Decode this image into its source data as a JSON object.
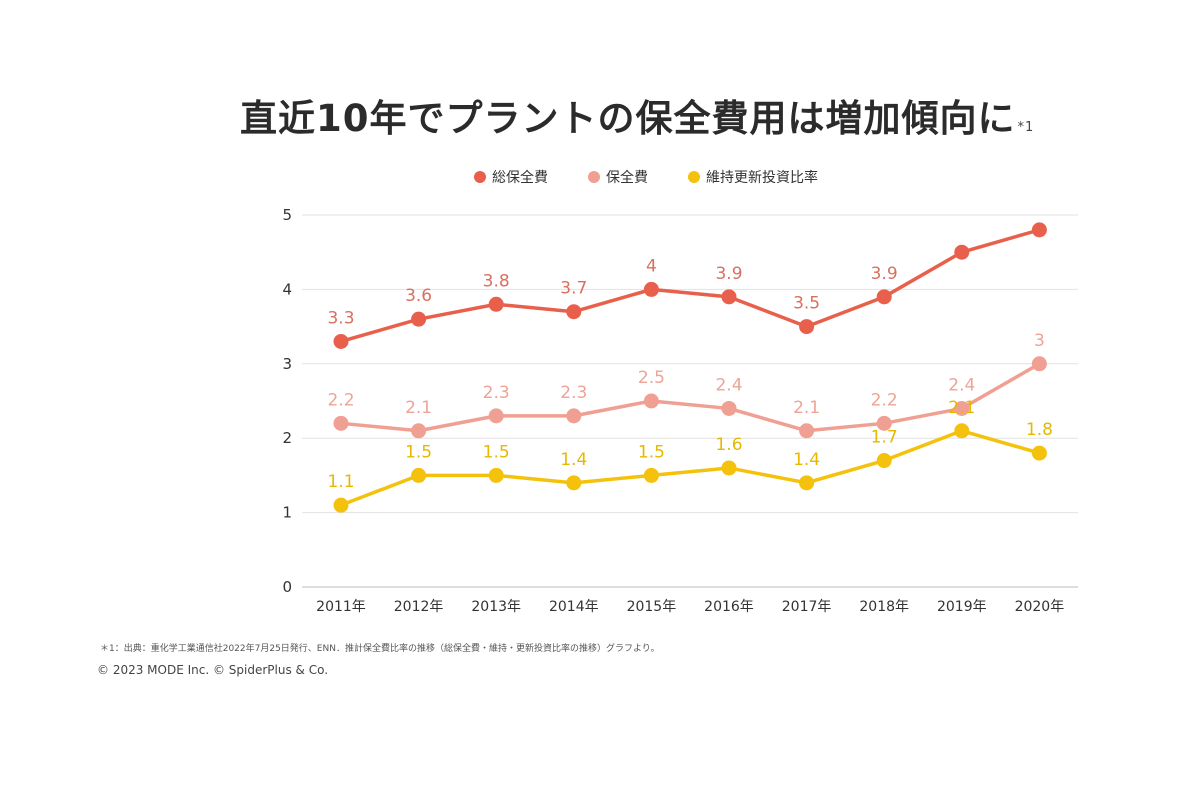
{
  "title": {
    "main": "直近10年でプラントの保全費用は増加傾向に",
    "note": "*1"
  },
  "footnote": "＊1：出典：重化学工業通信社2022年7月25日発行、ENN．推計保全費比率の推移（総保全費・維持・更新投資比率の推移）グラフより。",
  "copyright": "© 2023 MODE Inc. © SpiderPlus & Co.",
  "chart_data": {
    "type": "line",
    "title": "直近10年でプラントの保全費用は増加傾向に",
    "xlabel": "",
    "ylabel": "",
    "ylim": [
      0,
      5
    ],
    "yticks": [
      "0",
      "1",
      "2",
      "3",
      "4",
      "5"
    ],
    "yticks_values": [
      0,
      1,
      2,
      3,
      4,
      5
    ],
    "grid": true,
    "legend": "top",
    "categories": [
      "2011年",
      "2012年",
      "2013年",
      "2014年",
      "2015年",
      "2016年",
      "2017年",
      "2018年",
      "2019年",
      "2020年"
    ],
    "series": [
      {
        "name": "総保全費",
        "color": "#e8604c",
        "label_color": "#d9705f",
        "values": [
          3.3,
          3.6,
          3.8,
          3.7,
          4,
          3.9,
          3.5,
          3.9,
          4.5,
          4.8
        ],
        "labels": [
          "3.3",
          "3.6",
          "3.8",
          "3.7",
          "4",
          "3.9",
          "3.5",
          "3.9",
          "",
          ""
        ]
      },
      {
        "name": "保全費",
        "color": "#f0a093",
        "label_color": "#eda497",
        "values": [
          2.2,
          2.1,
          2.3,
          2.3,
          2.5,
          2.4,
          2.1,
          2.2,
          2.4,
          3
        ],
        "labels": [
          "2.2",
          "2.1",
          "2.3",
          "2.3",
          "2.5",
          "2.4",
          "2.1",
          "2.2",
          "2.4",
          "3"
        ]
      },
      {
        "name": "維持更新投資比率",
        "color": "#f4c20d",
        "label_color": "#e6b800",
        "values": [
          1.1,
          1.5,
          1.5,
          1.4,
          1.5,
          1.6,
          1.4,
          1.7,
          2.1,
          1.8
        ],
        "labels": [
          "1.1",
          "1.5",
          "1.5",
          "1.4",
          "1.5",
          "1.6",
          "1.4",
          "1.7",
          "2.1",
          "1.8"
        ]
      }
    ]
  }
}
